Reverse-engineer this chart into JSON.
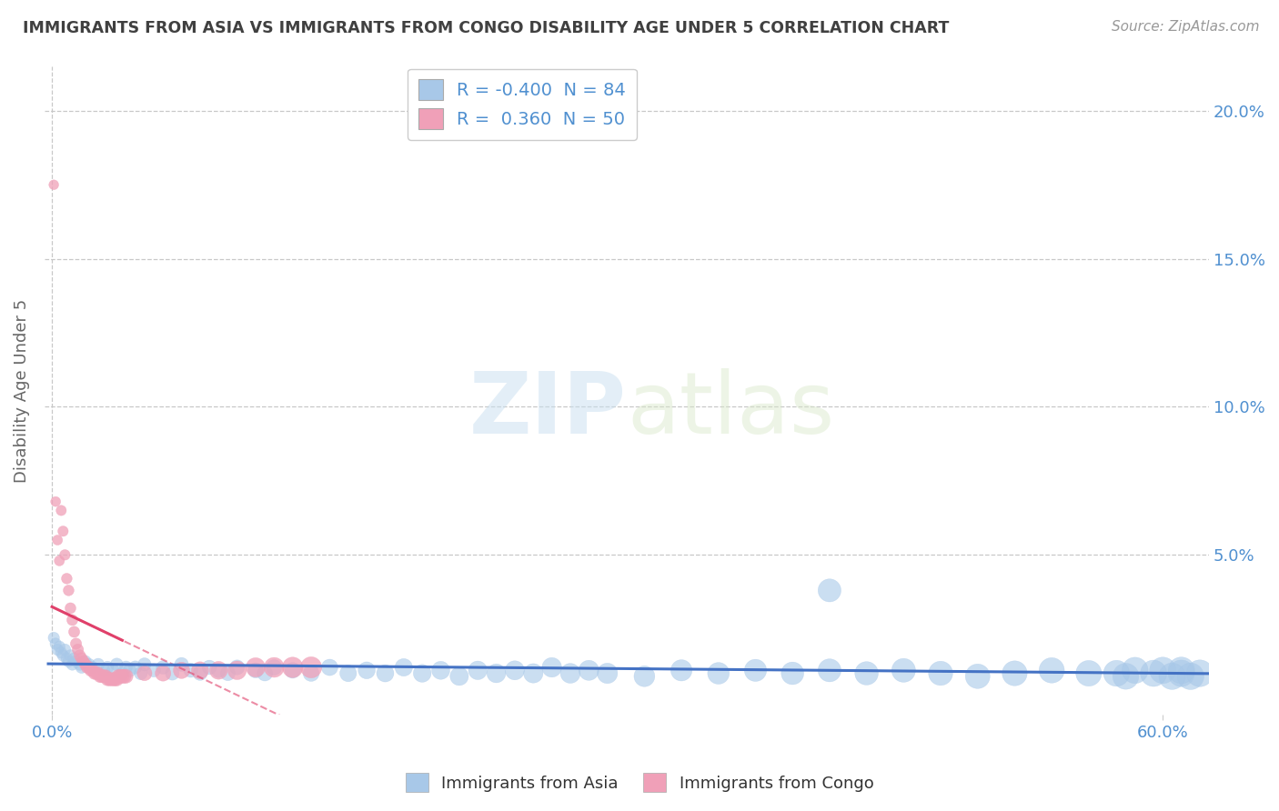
{
  "title": "IMMIGRANTS FROM ASIA VS IMMIGRANTS FROM CONGO DISABILITY AGE UNDER 5 CORRELATION CHART",
  "source": "Source: ZipAtlas.com",
  "ylabel": "Disability Age Under 5",
  "y_tick_vals": [
    0.0,
    0.05,
    0.1,
    0.15,
    0.2
  ],
  "y_tick_labels": [
    "",
    "5.0%",
    "10.0%",
    "15.0%",
    "20.0%"
  ],
  "xlim": [
    -0.004,
    0.625
  ],
  "ylim": [
    -0.004,
    0.215
  ],
  "watermark_zip": "ZIP",
  "watermark_atlas": "atlas",
  "asia_color": "#a8c8e8",
  "congo_color": "#f0a0b8",
  "trendline_asia_color": "#4472c4",
  "trendline_congo_color": "#e0406a",
  "grid_color": "#c8c8c8",
  "title_color": "#404040",
  "axis_label_color": "#5090d0",
  "R_asia": -0.4,
  "N_asia": 84,
  "R_congo": 0.36,
  "N_congo": 50,
  "asia_points": [
    [
      0.001,
      0.022
    ],
    [
      0.002,
      0.02
    ],
    [
      0.003,
      0.018
    ],
    [
      0.004,
      0.019
    ],
    [
      0.005,
      0.017
    ],
    [
      0.006,
      0.016
    ],
    [
      0.007,
      0.018
    ],
    [
      0.008,
      0.015
    ],
    [
      0.009,
      0.014
    ],
    [
      0.01,
      0.016
    ],
    [
      0.011,
      0.013
    ],
    [
      0.012,
      0.015
    ],
    [
      0.013,
      0.014
    ],
    [
      0.015,
      0.013
    ],
    [
      0.016,
      0.012
    ],
    [
      0.018,
      0.014
    ],
    [
      0.02,
      0.013
    ],
    [
      0.022,
      0.012
    ],
    [
      0.025,
      0.013
    ],
    [
      0.028,
      0.011
    ],
    [
      0.03,
      0.012
    ],
    [
      0.033,
      0.011
    ],
    [
      0.035,
      0.013
    ],
    [
      0.038,
      0.01
    ],
    [
      0.04,
      0.012
    ],
    [
      0.042,
      0.011
    ],
    [
      0.045,
      0.012
    ],
    [
      0.048,
      0.01
    ],
    [
      0.05,
      0.013
    ],
    [
      0.055,
      0.011
    ],
    [
      0.06,
      0.012
    ],
    [
      0.065,
      0.01
    ],
    [
      0.07,
      0.013
    ],
    [
      0.075,
      0.011
    ],
    [
      0.08,
      0.01
    ],
    [
      0.085,
      0.012
    ],
    [
      0.09,
      0.011
    ],
    [
      0.095,
      0.01
    ],
    [
      0.1,
      0.012
    ],
    [
      0.11,
      0.011
    ],
    [
      0.115,
      0.01
    ],
    [
      0.12,
      0.012
    ],
    [
      0.13,
      0.011
    ],
    [
      0.14,
      0.01
    ],
    [
      0.15,
      0.012
    ],
    [
      0.16,
      0.01
    ],
    [
      0.17,
      0.011
    ],
    [
      0.18,
      0.01
    ],
    [
      0.19,
      0.012
    ],
    [
      0.2,
      0.01
    ],
    [
      0.21,
      0.011
    ],
    [
      0.22,
      0.009
    ],
    [
      0.23,
      0.011
    ],
    [
      0.24,
      0.01
    ],
    [
      0.25,
      0.011
    ],
    [
      0.26,
      0.01
    ],
    [
      0.27,
      0.012
    ],
    [
      0.28,
      0.01
    ],
    [
      0.29,
      0.011
    ],
    [
      0.3,
      0.01
    ],
    [
      0.32,
      0.009
    ],
    [
      0.34,
      0.011
    ],
    [
      0.36,
      0.01
    ],
    [
      0.38,
      0.011
    ],
    [
      0.4,
      0.01
    ],
    [
      0.42,
      0.011
    ],
    [
      0.44,
      0.01
    ],
    [
      0.46,
      0.011
    ],
    [
      0.48,
      0.01
    ],
    [
      0.5,
      0.009
    ],
    [
      0.52,
      0.01
    ],
    [
      0.54,
      0.011
    ],
    [
      0.42,
      0.038
    ],
    [
      0.56,
      0.01
    ],
    [
      0.58,
      0.009
    ],
    [
      0.6,
      0.011
    ],
    [
      0.61,
      0.01
    ],
    [
      0.615,
      0.009
    ],
    [
      0.62,
      0.01
    ],
    [
      0.61,
      0.011
    ],
    [
      0.605,
      0.009
    ],
    [
      0.595,
      0.01
    ],
    [
      0.585,
      0.011
    ],
    [
      0.575,
      0.01
    ]
  ],
  "congo_points": [
    [
      0.001,
      0.175
    ],
    [
      0.002,
      0.068
    ],
    [
      0.003,
      0.055
    ],
    [
      0.004,
      0.048
    ],
    [
      0.005,
      0.065
    ],
    [
      0.006,
      0.058
    ],
    [
      0.007,
      0.05
    ],
    [
      0.008,
      0.042
    ],
    [
      0.009,
      0.038
    ],
    [
      0.01,
      0.032
    ],
    [
      0.011,
      0.028
    ],
    [
      0.012,
      0.024
    ],
    [
      0.013,
      0.02
    ],
    [
      0.014,
      0.018
    ],
    [
      0.015,
      0.016
    ],
    [
      0.016,
      0.015
    ],
    [
      0.017,
      0.014
    ],
    [
      0.018,
      0.013
    ],
    [
      0.019,
      0.012
    ],
    [
      0.02,
      0.012
    ],
    [
      0.021,
      0.011
    ],
    [
      0.022,
      0.011
    ],
    [
      0.023,
      0.01
    ],
    [
      0.024,
      0.01
    ],
    [
      0.025,
      0.01
    ],
    [
      0.026,
      0.009
    ],
    [
      0.027,
      0.009
    ],
    [
      0.028,
      0.009
    ],
    [
      0.029,
      0.009
    ],
    [
      0.03,
      0.008
    ],
    [
      0.031,
      0.008
    ],
    [
      0.032,
      0.008
    ],
    [
      0.033,
      0.008
    ],
    [
      0.034,
      0.008
    ],
    [
      0.035,
      0.008
    ],
    [
      0.036,
      0.009
    ],
    [
      0.037,
      0.009
    ],
    [
      0.038,
      0.009
    ],
    [
      0.039,
      0.009
    ],
    [
      0.04,
      0.009
    ],
    [
      0.05,
      0.01
    ],
    [
      0.06,
      0.01
    ],
    [
      0.07,
      0.011
    ],
    [
      0.08,
      0.011
    ],
    [
      0.09,
      0.011
    ],
    [
      0.1,
      0.011
    ],
    [
      0.11,
      0.012
    ],
    [
      0.12,
      0.012
    ],
    [
      0.13,
      0.012
    ],
    [
      0.14,
      0.012
    ]
  ],
  "asia_point_sizes_small": 200,
  "asia_point_sizes_large": 400,
  "congo_point_sizes_small": 120,
  "congo_point_sizes_large": 250
}
